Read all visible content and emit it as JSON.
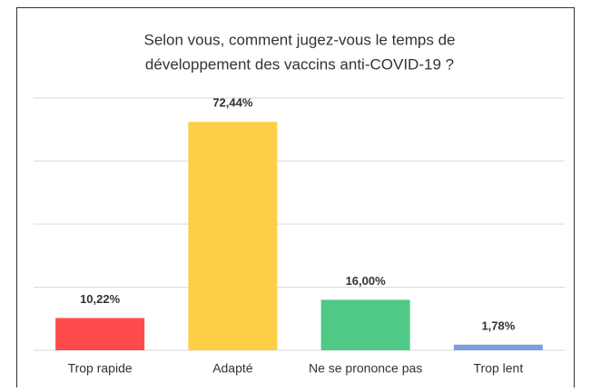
{
  "chart_data": {
    "type": "bar",
    "title": [
      "Selon vous, comment jugez-vous le temps de",
      "développement des vaccins anti-COVID-19 ?"
    ],
    "categories": [
      "Trop rapide",
      "Adapté",
      "Ne se prononce pas",
      "Trop lent"
    ],
    "values": [
      10.22,
      72.44,
      16.0,
      1.78
    ],
    "value_labels": [
      "10,22%",
      "72,44%",
      "16,00%",
      "1,78%"
    ],
    "colors": [
      "#ff4b4b",
      "#fdcf47",
      "#4fc986",
      "#7c9fe0"
    ],
    "ylim": [
      0,
      80
    ],
    "yticks": [
      0,
      20,
      40,
      60,
      80
    ],
    "grid": true
  }
}
